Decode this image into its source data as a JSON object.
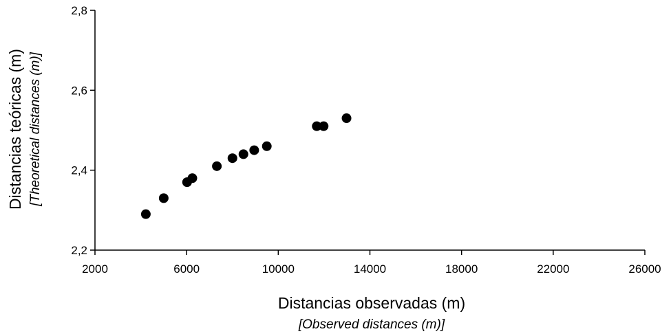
{
  "chart_data": {
    "type": "scatter",
    "xlabel": "Distancias observadas (m)",
    "xlabel_translation": "[Observed distances (m)]",
    "ylabel": "Distancias teóricas (m)",
    "ylabel_translation": "[Theoretical distances (m)]",
    "xlim": [
      2000,
      26000
    ],
    "ylim": [
      2.2,
      2.8
    ],
    "xticks": [
      2000,
      6000,
      10000,
      14000,
      18000,
      22000,
      26000
    ],
    "yticks": [
      2.2,
      2.4,
      2.6,
      2.8
    ],
    "ytick_labels": [
      "2,2",
      "2,4",
      "2,6",
      "2,8"
    ],
    "xtick_labels": [
      "2000",
      "6000",
      "10000",
      "14000",
      "18000",
      "22000",
      "26000"
    ],
    "grid": false,
    "marker_color": "#000000",
    "points": [
      {
        "x": 4220,
        "y": 2.29
      },
      {
        "x": 5000,
        "y": 2.33
      },
      {
        "x": 6020,
        "y": 2.37
      },
      {
        "x": 6250,
        "y": 2.38
      },
      {
        "x": 7320,
        "y": 2.41
      },
      {
        "x": 8000,
        "y": 2.43
      },
      {
        "x": 8480,
        "y": 2.44
      },
      {
        "x": 8950,
        "y": 2.45
      },
      {
        "x": 9500,
        "y": 2.46
      },
      {
        "x": 11680,
        "y": 2.51
      },
      {
        "x": 11980,
        "y": 2.51
      },
      {
        "x": 12980,
        "y": 2.53
      }
    ]
  }
}
